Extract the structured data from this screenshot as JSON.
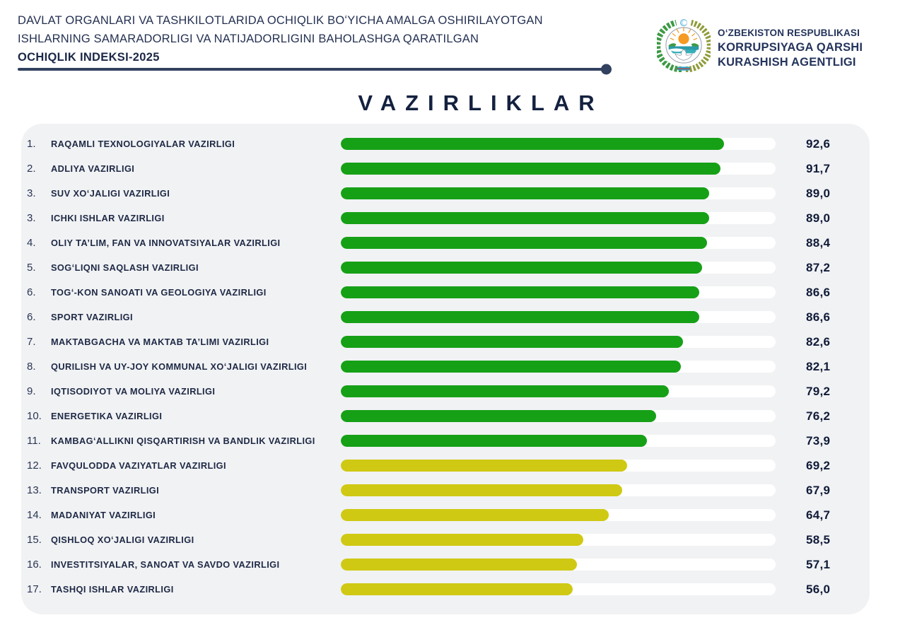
{
  "header": {
    "line1": "DAVLAT ORGANLARI VA TASHKILOTLARIDA OCHIQLIK BOʻYICHA AMALGA OSHIRILAYOTGAN",
    "line2": "ISHLARNING SAMARADORLIGI VA NATIJADORLIGINI BAHOLASHGA QARATILGAN",
    "line3": "OCHIQLIK INDEKSI-2025"
  },
  "agency": {
    "emblem_icon": "uzbekistan-state-emblem",
    "line1": "OʻZBEKISTON RESPUBLIKASI",
    "line2": "KORRUPSIYAGA QARSHI",
    "line3": "KURASHISH AGENTLIGI"
  },
  "page_title": "VAZIRLIKLAR",
  "colors": {
    "navy_text": "#1e2945",
    "divider": "#31415f",
    "panel_background": "#f1f2f4",
    "bar_track": "#ffffff",
    "bar_green": "#16a016",
    "bar_yellow": "#cfc913"
  },
  "chart_data": {
    "type": "bar",
    "orientation": "horizontal",
    "title": "VAZIRLIKLAR",
    "value_range": [
      0,
      100
    ],
    "bar_scale_max": 105,
    "high_color": "#16a016",
    "low_color": "#cfc913",
    "legend": "none",
    "grid": false,
    "rows": [
      {
        "rank": "1.",
        "label": "RAQAMLI TEXNOLOGIYALAR VAZIRLIGI",
        "value": 92.6,
        "display": "92,6",
        "color": "green"
      },
      {
        "rank": "2.",
        "label": "ADLIYA VAZIRLIGI",
        "value": 91.7,
        "display": "91,7",
        "color": "green"
      },
      {
        "rank": "3.",
        "label": "SUV XOʻJALIGI VAZIRLIGI",
        "value": 89.0,
        "display": "89,0",
        "color": "green"
      },
      {
        "rank": "3.",
        "label": "ICHKI ISHLAR VAZIRLIGI",
        "value": 89.0,
        "display": "89,0",
        "color": "green"
      },
      {
        "rank": "4.",
        "label": "OLIY TA’LIM, FAN VA INNOVATSIYALAR VAZIRLIGI",
        "value": 88.4,
        "display": "88,4",
        "color": "green"
      },
      {
        "rank": "5.",
        "label": "SOGʻLIQNI SAQLASH VAZIRLIGI",
        "value": 87.2,
        "display": "87,2",
        "color": "green"
      },
      {
        "rank": "6.",
        "label": "TOGʻ-KON SANOATI VA GEOLOGIYA VAZIRLIGI",
        "value": 86.6,
        "display": "86,6",
        "color": "green"
      },
      {
        "rank": "6.",
        "label": "SPORT VAZIRLIGI",
        "value": 86.6,
        "display": "86,6",
        "color": "green"
      },
      {
        "rank": "7.",
        "label": "MAKTABGACHA VA MAKTAB TA’LIMI VAZIRLIGI",
        "value": 82.6,
        "display": "82,6",
        "color": "green"
      },
      {
        "rank": "8.",
        "label": "QURILISH VA UY-JOY KOMMUNAL XOʻJALIGI VAZIRLIGI",
        "value": 82.1,
        "display": "82,1",
        "color": "green"
      },
      {
        "rank": "9.",
        "label": "IQTISODIYOT VA MOLIYA VAZIRLIGI",
        "value": 79.2,
        "display": "79,2",
        "color": "green"
      },
      {
        "rank": "10.",
        "label": "ENERGETIKA VAZIRLIGI",
        "value": 76.2,
        "display": "76,2",
        "color": "green"
      },
      {
        "rank": "11.",
        "label": "KAMBAGʻALLIKNI QISQARTIRISH VA BANDLIK VAZIRLIGI",
        "value": 73.9,
        "display": "73,9",
        "color": "green"
      },
      {
        "rank": "12.",
        "label": "FAVQULODDA VAZIYATLAR VAZIRLIGI",
        "value": 69.2,
        "display": "69,2",
        "color": "yellow"
      },
      {
        "rank": "13.",
        "label": "TRANSPORT VAZIRLIGI",
        "value": 67.9,
        "display": "67,9",
        "color": "yellow"
      },
      {
        "rank": "14.",
        "label": "MADANIYAT VAZIRLIGI",
        "value": 64.7,
        "display": "64,7",
        "color": "yellow"
      },
      {
        "rank": "15.",
        "label": "QISHLOQ XOʻJALIGI VAZIRLIGI",
        "value": 58.5,
        "display": "58,5",
        "color": "yellow"
      },
      {
        "rank": "16.",
        "label": "INVESTITSIYALAR, SANOAT VA SAVDO VAZIRLIGI",
        "value": 57.1,
        "display": "57,1",
        "color": "yellow"
      },
      {
        "rank": "17.",
        "label": "TASHQI ISHLAR VAZIRLIGI",
        "value": 56.0,
        "display": "56,0",
        "color": "yellow"
      }
    ]
  }
}
